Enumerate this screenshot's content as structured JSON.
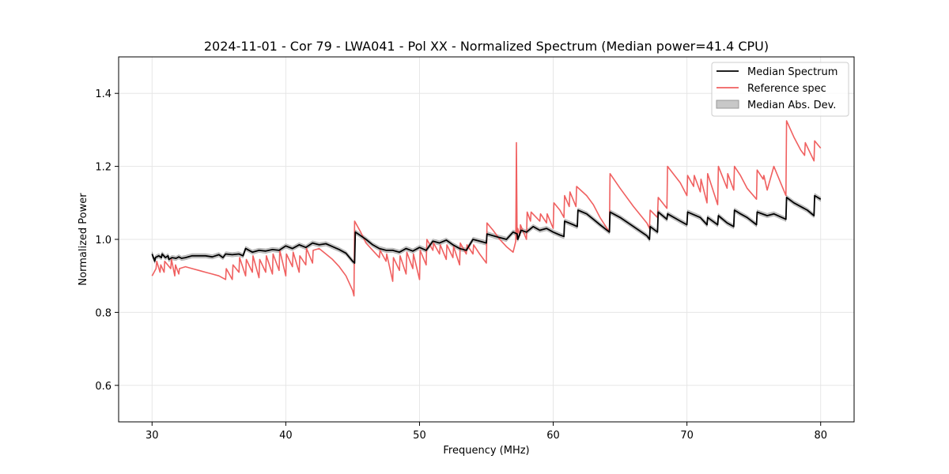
{
  "chart_data": {
    "type": "line",
    "title": "2024-11-01 - Cor 79 - LWA041 - Pol XX - Normalized Spectrum (Median power=41.4 CPU)",
    "xlabel": "Frequency (MHz)",
    "ylabel": "Normalized Power",
    "xlim": [
      27.5,
      82.5
    ],
    "ylim": [
      0.5,
      1.5
    ],
    "xticks": [
      30,
      40,
      50,
      60,
      70,
      80
    ],
    "xtick_labels": [
      "30",
      "40",
      "50",
      "60",
      "70",
      "80"
    ],
    "yticks": [
      0.6,
      0.8,
      1.0,
      1.2,
      1.4
    ],
    "ytick_labels": [
      "0.6",
      "0.8",
      "1.0",
      "1.2",
      "1.4"
    ],
    "grid": true,
    "legend": {
      "position": "top-right",
      "entries": [
        "Median Spectrum",
        "Reference spec",
        "Median Abs. Dev."
      ]
    },
    "series": [
      {
        "name": "Median Spectrum",
        "color": "#000000",
        "x": [
          30.0,
          30.2,
          30.25,
          30.5,
          30.7,
          30.75,
          31.0,
          31.2,
          31.25,
          31.5,
          31.8,
          32.0,
          32.2,
          32.5,
          33.0,
          33.5,
          34.0,
          34.5,
          35.0,
          35.3,
          35.5,
          36.0,
          36.5,
          36.8,
          37.0,
          37.5,
          38.0,
          38.5,
          39.0,
          39.5,
          40.0,
          40.5,
          41.0,
          41.5,
          42.0,
          42.5,
          43.0,
          43.5,
          44.0,
          44.5,
          45.0,
          45.15,
          45.2,
          45.6,
          46.0,
          46.5,
          47.0,
          47.5,
          48.0,
          48.5,
          49.0,
          49.5,
          50.0,
          50.5,
          51.0,
          51.5,
          52.0,
          52.5,
          53.0,
          53.5,
          54.0,
          54.5,
          55.0,
          55.05,
          55.5,
          56.0,
          56.5,
          57.0,
          57.3,
          57.35,
          57.6,
          58.0,
          58.5,
          59.0,
          59.5,
          60.0,
          60.5,
          60.8,
          60.85,
          61.5,
          61.8,
          61.85,
          62.5,
          63.0,
          63.5,
          64.2,
          64.25,
          65.0,
          66.0,
          67.0,
          67.2,
          67.25,
          67.8,
          67.85,
          68.5,
          68.55,
          69.5,
          70.0,
          70.05,
          71.0,
          71.5,
          71.55,
          72.3,
          72.35,
          73.0,
          73.5,
          73.55,
          74.0,
          74.5,
          75.2,
          75.25,
          76.0,
          76.5,
          77.4,
          77.45,
          78.0,
          78.5,
          79.0,
          79.5,
          79.55,
          80.0
        ],
        "values": [
          0.96,
          0.94,
          0.95,
          0.955,
          0.95,
          0.96,
          0.95,
          0.955,
          0.945,
          0.95,
          0.948,
          0.952,
          0.948,
          0.95,
          0.955,
          0.955,
          0.955,
          0.952,
          0.958,
          0.95,
          0.96,
          0.958,
          0.96,
          0.955,
          0.975,
          0.965,
          0.97,
          0.968,
          0.972,
          0.97,
          0.982,
          0.975,
          0.985,
          0.978,
          0.99,
          0.985,
          0.988,
          0.98,
          0.972,
          0.962,
          0.94,
          0.935,
          1.02,
          1.01,
          1.0,
          0.985,
          0.975,
          0.97,
          0.97,
          0.965,
          0.975,
          0.968,
          0.978,
          0.97,
          0.995,
          0.99,
          0.998,
          0.985,
          0.975,
          0.97,
          1.0,
          0.995,
          0.99,
          1.015,
          1.01,
          1.005,
          1.0,
          1.02,
          1.015,
          1.0,
          1.025,
          1.02,
          1.035,
          1.025,
          1.03,
          1.02,
          1.012,
          1.008,
          1.05,
          1.04,
          1.035,
          1.08,
          1.07,
          1.055,
          1.04,
          1.02,
          1.075,
          1.06,
          1.035,
          1.01,
          1.0,
          1.035,
          1.02,
          1.075,
          1.055,
          1.07,
          1.05,
          1.04,
          1.075,
          1.06,
          1.04,
          1.06,
          1.04,
          1.065,
          1.045,
          1.035,
          1.08,
          1.07,
          1.06,
          1.04,
          1.075,
          1.065,
          1.07,
          1.055,
          1.115,
          1.1,
          1.09,
          1.08,
          1.065,
          1.12,
          1.11
        ],
        "mad": 0.006
      },
      {
        "name": "Reference spec",
        "color": "#f06060",
        "x": [
          30.0,
          30.3,
          30.35,
          30.6,
          30.65,
          30.9,
          30.95,
          31.4,
          31.45,
          31.7,
          31.75,
          32.0,
          32.05,
          32.5,
          33.0,
          33.5,
          34.0,
          34.5,
          35.0,
          35.5,
          35.55,
          36.0,
          36.05,
          36.5,
          36.55,
          37.0,
          37.05,
          37.5,
          37.55,
          38.0,
          38.05,
          38.5,
          38.55,
          39.0,
          39.05,
          39.5,
          39.55,
          40.0,
          40.05,
          40.5,
          40.55,
          41.0,
          41.05,
          41.5,
          41.55,
          42.0,
          42.05,
          42.5,
          43.0,
          43.5,
          44.0,
          44.5,
          45.0,
          45.1,
          45.15,
          45.6,
          46.0,
          46.5,
          47.0,
          47.05,
          47.5,
          47.55,
          48.0,
          48.05,
          48.5,
          48.55,
          49.0,
          49.05,
          49.5,
          49.55,
          50.0,
          50.05,
          50.5,
          50.55,
          51.0,
          51.05,
          51.5,
          51.55,
          52.0,
          52.05,
          52.5,
          52.55,
          53.0,
          53.05,
          53.5,
          53.55,
          54.0,
          54.05,
          54.5,
          55.0,
          55.05,
          55.5,
          56.0,
          56.5,
          57.0,
          57.2,
          57.25,
          57.3,
          57.35,
          57.5,
          57.55,
          58.0,
          58.05,
          58.3,
          58.35,
          59.0,
          59.05,
          59.5,
          59.55,
          60.0,
          60.05,
          60.5,
          60.8,
          60.85,
          61.2,
          61.25,
          61.7,
          61.75,
          62.5,
          63.0,
          63.5,
          64.2,
          64.25,
          65.0,
          66.0,
          67.0,
          67.2,
          67.25,
          67.8,
          67.85,
          68.5,
          68.55,
          69.5,
          70.0,
          70.05,
          70.5,
          70.55,
          71.0,
          71.05,
          71.5,
          71.55,
          72.3,
          72.35,
          73.0,
          73.05,
          73.5,
          73.55,
          74.0,
          74.5,
          75.2,
          75.25,
          75.7,
          75.75,
          76.0,
          76.5,
          77.4,
          77.45,
          78.0,
          78.5,
          78.8,
          78.85,
          79.5,
          79.55,
          80.0
        ],
        "values": [
          0.9,
          0.92,
          0.94,
          0.91,
          0.93,
          0.91,
          0.94,
          0.92,
          0.945,
          0.9,
          0.93,
          0.905,
          0.92,
          0.925,
          0.92,
          0.915,
          0.91,
          0.905,
          0.9,
          0.89,
          0.92,
          0.89,
          0.93,
          0.91,
          0.95,
          0.9,
          0.945,
          0.91,
          0.955,
          0.895,
          0.945,
          0.91,
          0.955,
          0.905,
          0.96,
          0.915,
          0.97,
          0.9,
          0.96,
          0.925,
          0.965,
          0.91,
          0.955,
          0.93,
          0.975,
          0.935,
          0.97,
          0.975,
          0.96,
          0.945,
          0.925,
          0.9,
          0.86,
          0.845,
          1.05,
          1.02,
          0.99,
          0.97,
          0.95,
          0.97,
          0.94,
          0.96,
          0.885,
          0.95,
          0.915,
          0.955,
          0.905,
          0.965,
          0.92,
          0.96,
          0.89,
          0.97,
          0.93,
          1.0,
          0.97,
          0.99,
          0.96,
          0.985,
          0.945,
          0.985,
          0.95,
          0.98,
          0.93,
          0.99,
          0.96,
          0.985,
          0.96,
          0.985,
          0.96,
          0.935,
          1.045,
          1.025,
          1.0,
          0.98,
          0.965,
          0.995,
          1.265,
          1.0,
          1.03,
          1.01,
          1.04,
          1.0,
          1.075,
          1.05,
          1.075,
          1.05,
          1.07,
          1.045,
          1.07,
          1.03,
          1.1,
          1.08,
          1.06,
          1.12,
          1.09,
          1.13,
          1.09,
          1.145,
          1.12,
          1.095,
          1.06,
          1.02,
          1.18,
          1.14,
          1.09,
          1.045,
          1.03,
          1.08,
          1.06,
          1.115,
          1.085,
          1.2,
          1.155,
          1.12,
          1.175,
          1.145,
          1.175,
          1.13,
          1.165,
          1.1,
          1.18,
          1.095,
          1.2,
          1.14,
          1.18,
          1.135,
          1.2,
          1.175,
          1.14,
          1.11,
          1.19,
          1.165,
          1.175,
          1.135,
          1.2,
          1.12,
          1.325,
          1.28,
          1.245,
          1.23,
          1.265,
          1.215,
          1.27,
          1.25
        ]
      }
    ]
  }
}
